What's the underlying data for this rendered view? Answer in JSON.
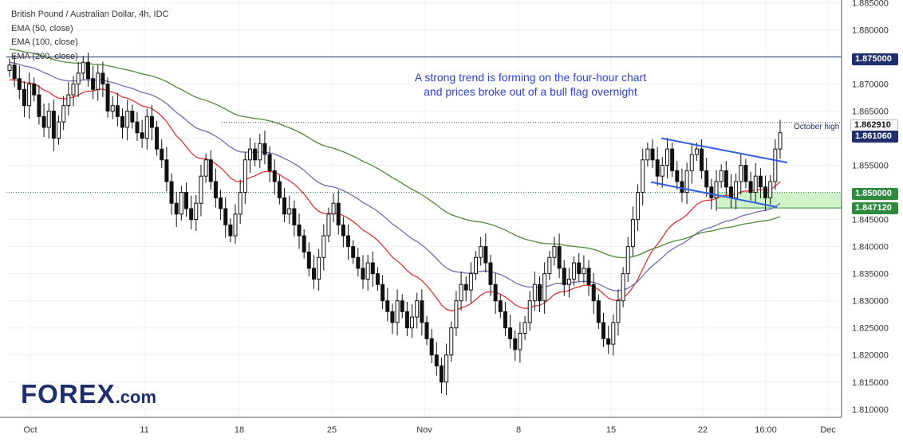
{
  "legend": {
    "instrument": "British Pound / Australian Dollar, 4h, IDC",
    "ema50": "EMA (50, close)",
    "ema100": "EMA (100, close)",
    "ema200": "EMA (200, close)"
  },
  "annotation": {
    "line1": "A strong trend is forming on the four-hour chart",
    "line2": "and prices broke out of a bull flag overnight"
  },
  "labels": {
    "october_high_note": "October high",
    "october_high_value": "1.862910",
    "current_price": "1.861060",
    "level_1875": "1.875000",
    "level_1850": "1.850000",
    "level_1847": "1.847120"
  },
  "logo": {
    "text": "FOREX",
    "suffix": ".com"
  },
  "colors": {
    "ema50": "#e03434",
    "ema100": "#6f6fb0",
    "ema200": "#4f8a3a",
    "flag": "#2f5fe0",
    "navy": "#1f2f6b",
    "support_zone": "#c8f0c0"
  },
  "chart_data": {
    "type": "candlestick",
    "y_axis_ticks": [
      "1.885000",
      "1.880000",
      "1.875000",
      "1.870000",
      "1.865000",
      "1.860000",
      "1.855000",
      "1.850000",
      "1.845000",
      "1.840000",
      "1.835000",
      "1.830000",
      "1.825000",
      "1.820000",
      "1.815000",
      "1.810000"
    ],
    "x_axis_ticks": [
      "Oct",
      "11",
      "18",
      "25",
      "Nov",
      "8",
      "15",
      "22",
      "16:00",
      "Dec"
    ],
    "ylim": [
      1.8085,
      1.8855
    ],
    "horizontal_levels": [
      1.875,
      1.85,
      1.84712,
      1.86291
    ],
    "support_zone": [
      1.84712,
      1.85
    ],
    "closes": [
      1.8735,
      1.871,
      1.869,
      1.866,
      1.87,
      1.868,
      1.864,
      1.862,
      1.865,
      1.86,
      1.863,
      1.866,
      1.868,
      1.87,
      1.872,
      1.874,
      1.871,
      1.869,
      1.872,
      1.87,
      1.865,
      1.866,
      1.864,
      1.862,
      1.865,
      1.863,
      1.861,
      1.86,
      1.864,
      1.862,
      1.858,
      1.856,
      1.852,
      1.848,
      1.846,
      1.85,
      1.847,
      1.845,
      1.848,
      1.853,
      1.856,
      1.852,
      1.849,
      1.847,
      1.844,
      1.842,
      1.846,
      1.85,
      1.856,
      1.858,
      1.856,
      1.859,
      1.857,
      1.854,
      1.852,
      1.849,
      1.846,
      1.847,
      1.844,
      1.842,
      1.839,
      1.836,
      1.834,
      1.838,
      1.842,
      1.846,
      1.848,
      1.844,
      1.842,
      1.84,
      1.838,
      1.836,
      1.834,
      1.837,
      1.835,
      1.833,
      1.83,
      1.828,
      1.826,
      1.83,
      1.828,
      1.825,
      1.827,
      1.83,
      1.826,
      1.823,
      1.82,
      1.818,
      1.815,
      1.82,
      1.825,
      1.83,
      1.833,
      1.832,
      1.835,
      1.838,
      1.84,
      1.837,
      1.833,
      1.83,
      1.828,
      1.825,
      1.823,
      1.821,
      1.824,
      1.826,
      1.83,
      1.833,
      1.83,
      1.835,
      1.838,
      1.84,
      1.836,
      1.833,
      1.834,
      1.837,
      1.835,
      1.836,
      1.833,
      1.83,
      1.826,
      1.823,
      1.822,
      1.826,
      1.83,
      1.835,
      1.84,
      1.845,
      1.85,
      1.856,
      1.858,
      1.856,
      1.853,
      1.855,
      1.858,
      1.854,
      1.852,
      1.85,
      1.854,
      1.857,
      1.858,
      1.854,
      1.851,
      1.849,
      1.852,
      1.854,
      1.851,
      1.849,
      1.852,
      1.855,
      1.852,
      1.85,
      1.853,
      1.851,
      1.849,
      1.852,
      1.858,
      1.861
    ]
  }
}
